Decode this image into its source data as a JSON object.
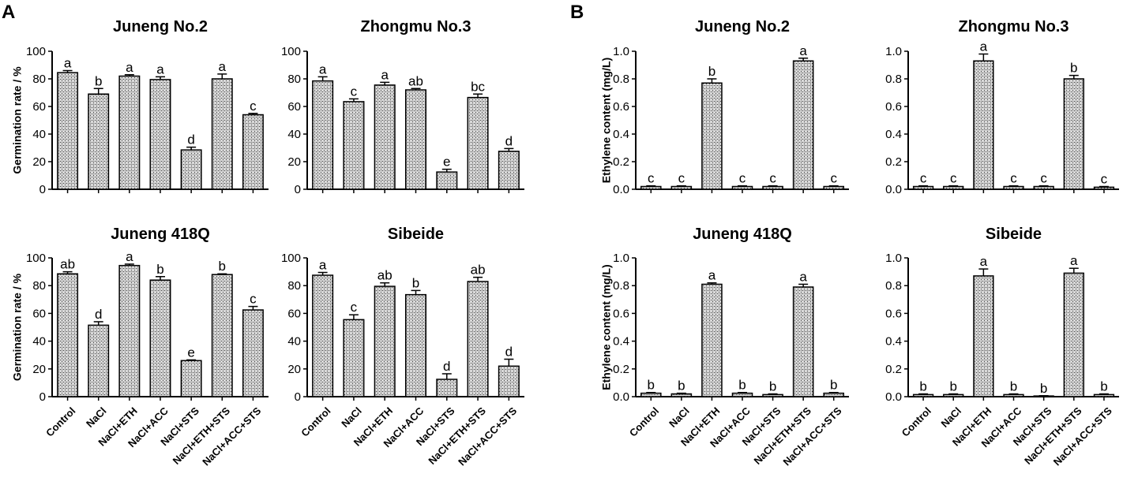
{
  "panel_labels": [
    "A",
    "B"
  ],
  "colors": {
    "bar_fill": "#d9d9d9",
    "bar_pattern": "#3a3a3a",
    "axis": "#000000",
    "text": "#000000"
  },
  "chart_data": [
    {
      "type": "bar",
      "panel": "A",
      "title": "Juneng No.2",
      "ylabel": "Germination rate / %",
      "categories": [
        "Control",
        "NaCl",
        "NaCl+ETH",
        "NaCl+ACC",
        "NaCl+STS",
        "NaCl+ETH+STS",
        "NaCl+ACC+STS"
      ],
      "values": [
        84.5,
        69.0,
        82.0,
        79.5,
        28.5,
        80.0,
        54.0
      ],
      "errors": [
        1.5,
        4.0,
        1.0,
        2.0,
        2.0,
        3.5,
        1.0
      ],
      "letters": [
        "a",
        "b",
        "a",
        "a",
        "d",
        "a",
        "c"
      ],
      "ylim": [
        0,
        100
      ],
      "ticks": [
        "0",
        "20",
        "40",
        "60",
        "80",
        "100"
      ],
      "show_xlabels": false
    },
    {
      "type": "bar",
      "panel": "A",
      "title": "Zhongmu No.3",
      "ylabel": "",
      "categories": [
        "Control",
        "NaCl",
        "NaCl+ETH",
        "NaCl+ACC",
        "NaCl+STS",
        "NaCl+ETH+STS",
        "NaCl+ACC+STS"
      ],
      "values": [
        78.5,
        63.5,
        75.5,
        72.0,
        12.5,
        66.5,
        27.5
      ],
      "errors": [
        3.0,
        2.0,
        2.0,
        1.0,
        2.0,
        2.5,
        2.0
      ],
      "letters": [
        "a",
        "c",
        "a",
        "ab",
        "e",
        "bc",
        "d"
      ],
      "ylim": [
        0,
        100
      ],
      "ticks": [
        "0",
        "20",
        "40",
        "60",
        "80",
        "100"
      ],
      "show_xlabels": false
    },
    {
      "type": "bar",
      "panel": "A",
      "title": "Juneng 418Q",
      "ylabel": "Germination rate / %",
      "categories": [
        "Control",
        "NaCl",
        "NaCl+ETH",
        "NaCl+ACC",
        "NaCl+STS",
        "NaCl+ETH+STS",
        "NaCl+ACC+STS"
      ],
      "values": [
        88.5,
        51.5,
        94.5,
        84.0,
        26.0,
        88.0,
        62.5
      ],
      "errors": [
        1.5,
        2.5,
        1.0,
        2.5,
        0.5,
        0.5,
        2.5
      ],
      "letters": [
        "ab",
        "d",
        "a",
        "b",
        "e",
        "b",
        "c"
      ],
      "ylim": [
        0,
        100
      ],
      "ticks": [
        "0",
        "20",
        "40",
        "60",
        "80",
        "100"
      ],
      "show_xlabels": true
    },
    {
      "type": "bar",
      "panel": "A",
      "title": "Sibeide",
      "ylabel": "",
      "categories": [
        "Control",
        "NaCl",
        "NaCl+ETH",
        "NaCl+ACC",
        "NaCl+STS",
        "NaCl+ETH+STS",
        "NaCl+ACC+STS"
      ],
      "values": [
        87.5,
        55.5,
        79.5,
        73.5,
        12.5,
        83.0,
        22.0
      ],
      "errors": [
        2.0,
        3.5,
        2.5,
        3.0,
        4.0,
        3.0,
        5.0
      ],
      "letters": [
        "a",
        "c",
        "ab",
        "b",
        "d",
        "ab",
        "d"
      ],
      "ylim": [
        0,
        100
      ],
      "ticks": [
        "0",
        "20",
        "40",
        "60",
        "80",
        "100"
      ],
      "show_xlabels": true
    },
    {
      "type": "bar",
      "panel": "B",
      "title": "Juneng No.2",
      "ylabel": "Ethylene content (mg/L)",
      "categories": [
        "Control",
        "NaCl",
        "NaCl+ETH",
        "NaCl+ACC",
        "NaCl+STS",
        "NaCl+ETH+STS",
        "NaCl+ACC+STS"
      ],
      "values": [
        0.02,
        0.02,
        0.77,
        0.02,
        0.02,
        0.93,
        0.02
      ],
      "errors": [
        0.005,
        0.005,
        0.03,
        0.005,
        0.005,
        0.02,
        0.005
      ],
      "letters": [
        "c",
        "c",
        "b",
        "c",
        "c",
        "a",
        "c"
      ],
      "ylim": [
        0,
        1.0
      ],
      "ticks": [
        "0.0",
        "0.2",
        "0.4",
        "0.6",
        "0.8",
        "1.0"
      ],
      "show_xlabels": false
    },
    {
      "type": "bar",
      "panel": "B",
      "title": "Zhongmu No.3",
      "ylabel": "",
      "categories": [
        "Control",
        "NaCl",
        "NaCl+ETH",
        "NaCl+ACC",
        "NaCl+STS",
        "NaCl+ETH+STS",
        "NaCl+ACC+STS"
      ],
      "values": [
        0.02,
        0.02,
        0.93,
        0.02,
        0.02,
        0.8,
        0.015
      ],
      "errors": [
        0.005,
        0.005,
        0.05,
        0.005,
        0.005,
        0.025,
        0.005
      ],
      "letters": [
        "c",
        "c",
        "a",
        "c",
        "c",
        "b",
        "c"
      ],
      "ylim": [
        0,
        1.0
      ],
      "ticks": [
        "0.0",
        "0.2",
        "0.4",
        "0.6",
        "0.8",
        "1.0"
      ],
      "show_xlabels": false
    },
    {
      "type": "bar",
      "panel": "B",
      "title": "Juneng 418Q",
      "ylabel": "Ethylene content (mg/L)",
      "categories": [
        "Control",
        "NaCl",
        "NaCl+ETH",
        "NaCl+ACC",
        "NaCl+STS",
        "NaCl+ETH+STS",
        "NaCl+ACC+STS"
      ],
      "values": [
        0.025,
        0.02,
        0.81,
        0.025,
        0.015,
        0.79,
        0.025
      ],
      "errors": [
        0.005,
        0.005,
        0.01,
        0.005,
        0.005,
        0.02,
        0.005
      ],
      "letters": [
        "b",
        "b",
        "a",
        "b",
        "b",
        "a",
        "b"
      ],
      "ylim": [
        0,
        1.0
      ],
      "ticks": [
        "0.0",
        "0.2",
        "0.4",
        "0.6",
        "0.8",
        "1.0"
      ],
      "show_xlabels": true
    },
    {
      "type": "bar",
      "panel": "B",
      "title": "Sibeide",
      "ylabel": "",
      "categories": [
        "Control",
        "NaCl",
        "NaCl+ETH",
        "NaCl+ACC",
        "NaCl+STS",
        "NaCl+ETH+STS",
        "NaCl+ACC+STS"
      ],
      "values": [
        0.015,
        0.015,
        0.87,
        0.015,
        0.005,
        0.89,
        0.015
      ],
      "errors": [
        0.005,
        0.005,
        0.05,
        0.005,
        0.002,
        0.035,
        0.005
      ],
      "letters": [
        "b",
        "b",
        "a",
        "b",
        "b",
        "a",
        "b"
      ],
      "ylim": [
        0,
        1.0
      ],
      "ticks": [
        "0.0",
        "0.2",
        "0.4",
        "0.6",
        "0.8",
        "1.0"
      ],
      "show_xlabels": true
    }
  ]
}
